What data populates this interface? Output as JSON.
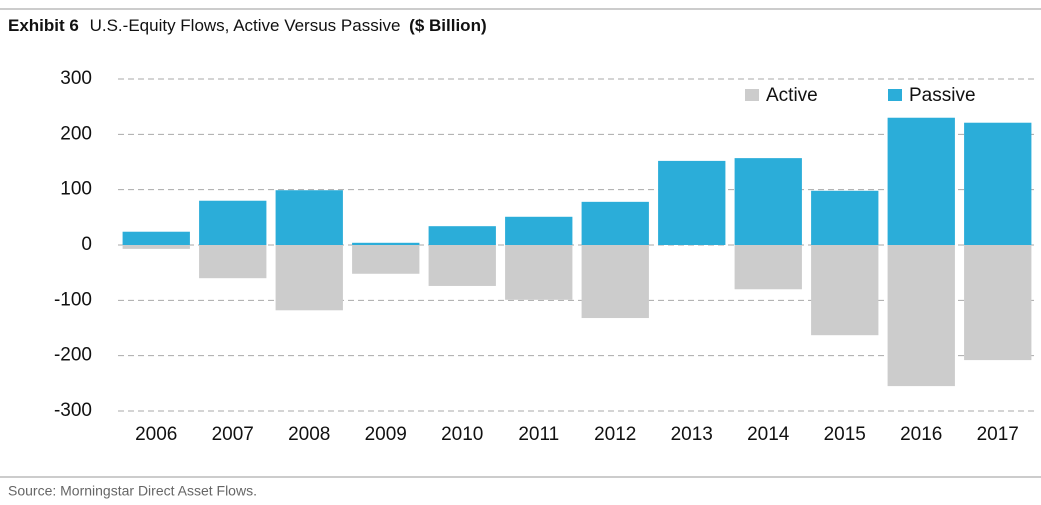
{
  "chart_data": {
    "type": "bar",
    "title": {
      "label": "Exhibit 6",
      "text": "U.S.-Equity Flows, Active Versus Passive",
      "unit": "($ Billion)"
    },
    "source": "Source: Morningstar Direct Asset Flows.",
    "categories": [
      "2006",
      "2007",
      "2008",
      "2009",
      "2010",
      "2011",
      "2012",
      "2013",
      "2014",
      "2015",
      "2016",
      "2017"
    ],
    "series": [
      {
        "name": "Active",
        "color": "#cccccc",
        "values": [
          -7,
          -60,
          -118,
          -52,
          -74,
          -99,
          -132,
          0,
          -80,
          -163,
          -255,
          -208
        ]
      },
      {
        "name": "Passive",
        "color": "#2badd9",
        "values": [
          24,
          80,
          99,
          4,
          34,
          51,
          78,
          152,
          157,
          98,
          230,
          221
        ]
      }
    ],
    "ylim": [
      -300,
      300
    ],
    "yticks": [
      -300,
      -200,
      -100,
      0,
      100,
      200,
      300
    ],
    "grid": true,
    "legend": "top-right"
  }
}
